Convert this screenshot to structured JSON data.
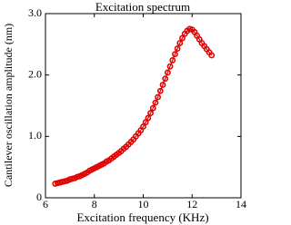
{
  "chart_data": {
    "type": "line",
    "title": "Excitation spectrum",
    "x_label": "Excitation frequency (KHz)",
    "y_label": "Cantilever oscillation amplitude (nm)",
    "xlim": [
      6,
      14
    ],
    "xticks": [
      6,
      8,
      10,
      12,
      14
    ],
    "ylim": [
      0,
      3
    ],
    "yticks": [
      0,
      {
        "value": 1,
        "label": "1.0"
      },
      {
        "value": 2,
        "label": "2.0"
      },
      {
        "value": 3,
        "label": "3.0"
      }
    ],
    "grid": false,
    "markers": true,
    "series": [
      {
        "color": "#e00000",
        "x": [
          6.4,
          6.5,
          6.6,
          6.7,
          6.8,
          6.9,
          7.0,
          7.1,
          7.2,
          7.3,
          7.4,
          7.5,
          7.6,
          7.7,
          7.8,
          7.9,
          8.0,
          8.1,
          8.2,
          8.3,
          8.4,
          8.5,
          8.6,
          8.7,
          8.8,
          8.9,
          9.0,
          9.1,
          9.2,
          9.3,
          9.4,
          9.5,
          9.6,
          9.7,
          9.8,
          9.9,
          10.0,
          10.1,
          10.2,
          10.3,
          10.4,
          10.5,
          10.6,
          10.7,
          10.8,
          10.9,
          11.0,
          11.1,
          11.2,
          11.3,
          11.4,
          11.5,
          11.6,
          11.7,
          11.8,
          11.9,
          12.0,
          12.1,
          12.2,
          12.3,
          12.4,
          12.5,
          12.6,
          12.7,
          12.8
        ],
        "values": [
          0.23,
          0.24,
          0.25,
          0.26,
          0.27,
          0.28,
          0.3,
          0.31,
          0.32,
          0.34,
          0.35,
          0.37,
          0.39,
          0.41,
          0.44,
          0.46,
          0.48,
          0.5,
          0.52,
          0.54,
          0.56,
          0.59,
          0.61,
          0.64,
          0.67,
          0.7,
          0.73,
          0.76,
          0.8,
          0.83,
          0.87,
          0.91,
          0.95,
          1.0,
          1.05,
          1.1,
          1.16,
          1.23,
          1.3,
          1.38,
          1.46,
          1.55,
          1.64,
          1.74,
          1.84,
          1.94,
          2.04,
          2.14,
          2.24,
          2.34,
          2.43,
          2.52,
          2.6,
          2.67,
          2.72,
          2.75,
          2.74,
          2.7,
          2.64,
          2.58,
          2.52,
          2.47,
          2.42,
          2.37,
          2.32
        ]
      }
    ]
  }
}
